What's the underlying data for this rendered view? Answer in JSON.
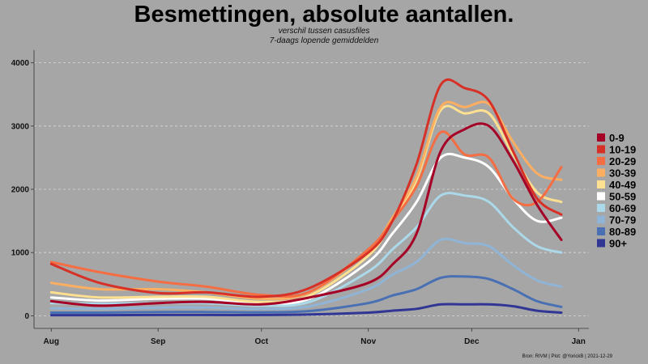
{
  "title": "Besmettingen, absolute aantallen.",
  "subtitle_line1": "verschil tussen casusfiles",
  "subtitle_line2": "7-daags lopende gemiddelden",
  "caption": "Bron: RIVM | Plot: @YorickB  |  2021-12-29",
  "chart_data": {
    "type": "line",
    "title": "Besmettingen, absolute aantallen.",
    "xlabel": "",
    "ylabel": "",
    "x": [
      "2021-08-01",
      "2021-08-15",
      "2021-09-01",
      "2021-09-15",
      "2021-10-01",
      "2021-10-15",
      "2021-11-01",
      "2021-11-08",
      "2021-11-15",
      "2021-11-22",
      "2021-11-29",
      "2021-12-06",
      "2021-12-13",
      "2021-12-20",
      "2021-12-27"
    ],
    "x_ticks": [
      {
        "date": "2021-08-01",
        "label": "Aug"
      },
      {
        "date": "2021-09-01",
        "label": "Sep"
      },
      {
        "date": "2021-10-01",
        "label": "Oct"
      },
      {
        "date": "2021-11-01",
        "label": "Nov"
      },
      {
        "date": "2021-12-01",
        "label": "Dec"
      },
      {
        "date": "2022-01-01",
        "label": "Jan"
      }
    ],
    "xlim": [
      "2021-07-27",
      "2022-01-04"
    ],
    "y_ticks": [
      0,
      1000,
      2000,
      3000,
      4000
    ],
    "ylim": [
      -200,
      4200
    ],
    "grid": true,
    "legend_position": "right",
    "series": [
      {
        "name": "0-9",
        "color": "#a50026",
        "values": [
          230,
          160,
          200,
          220,
          180,
          290,
          520,
          810,
          1300,
          2600,
          2950,
          3000,
          2450,
          1750,
          1200
        ]
      },
      {
        "name": "10-19",
        "color": "#d73027",
        "values": [
          820,
          520,
          360,
          370,
          300,
          440,
          1000,
          1500,
          2400,
          3650,
          3600,
          3400,
          2600,
          1850,
          1600
        ]
      },
      {
        "name": "20-29",
        "color": "#f46d43",
        "values": [
          850,
          690,
          540,
          460,
          330,
          380,
          1050,
          1500,
          2050,
          2900,
          2550,
          2500,
          1850,
          1800,
          2350
        ]
      },
      {
        "name": "30-39",
        "color": "#fdae61",
        "values": [
          520,
          420,
          420,
          370,
          270,
          370,
          1030,
          1550,
          2200,
          3300,
          3300,
          3350,
          2750,
          2250,
          2150
        ]
      },
      {
        "name": "40-49",
        "color": "#fee090",
        "values": [
          370,
          290,
          300,
          300,
          220,
          320,
          950,
          1500,
          2150,
          3250,
          3200,
          3200,
          2550,
          1950,
          1800
        ]
      },
      {
        "name": "50-59",
        "color": "#ffffff",
        "values": [
          290,
          240,
          270,
          270,
          200,
          270,
          850,
          1300,
          1800,
          2500,
          2500,
          2350,
          1850,
          1500,
          1550
        ]
      },
      {
        "name": "60-69",
        "color": "#abd9e9",
        "values": [
          200,
          190,
          200,
          200,
          160,
          220,
          700,
          1050,
          1400,
          1900,
          1900,
          1800,
          1400,
          1100,
          1000
        ]
      },
      {
        "name": "70-79",
        "color": "#8fb4d6",
        "values": [
          120,
          110,
          130,
          130,
          110,
          150,
          420,
          650,
          850,
          1200,
          1150,
          1100,
          800,
          560,
          460
        ]
      },
      {
        "name": "80-89",
        "color": "#4a70b4",
        "values": [
          50,
          50,
          60,
          60,
          55,
          75,
          200,
          320,
          420,
          600,
          620,
          580,
          420,
          230,
          140
        ]
      },
      {
        "name": "90+",
        "color": "#313695",
        "values": [
          10,
          10,
          12,
          12,
          12,
          20,
          50,
          80,
          110,
          180,
          180,
          180,
          150,
          80,
          50
        ]
      }
    ]
  }
}
